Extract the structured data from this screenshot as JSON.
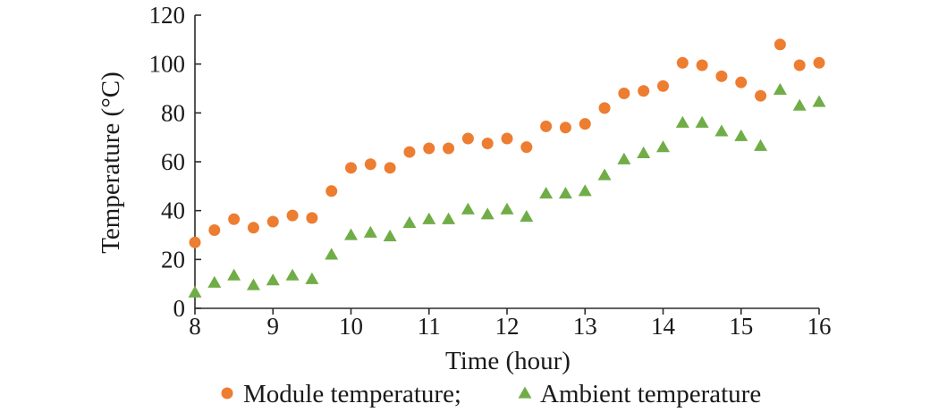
{
  "chart_data": {
    "type": "scatter",
    "title": "",
    "xlabel": "Time (hour)",
    "ylabel": "Temperature (°C)",
    "xlim": [
      8,
      16
    ],
    "ylim": [
      0,
      120
    ],
    "xticks": [
      8,
      9,
      10,
      11,
      12,
      13,
      14,
      15,
      16
    ],
    "yticks": [
      0,
      20,
      40,
      60,
      80,
      100,
      120
    ],
    "grid": false,
    "legend_position": "bottom",
    "series": [
      {
        "name": "Module temperature;",
        "marker": "circle",
        "color": "#ED7D31",
        "x": [
          8,
          8.25,
          8.5,
          8.75,
          9,
          9.25,
          9.5,
          9.75,
          10,
          10.25,
          10.5,
          10.75,
          11,
          11.25,
          11.5,
          11.75,
          12,
          12.25,
          12.5,
          12.75,
          13,
          13.25,
          13.5,
          13.75,
          14,
          14.25,
          14.5,
          14.75,
          15,
          15.25,
          15.5,
          15.75,
          16
        ],
        "y": [
          27,
          32,
          36.5,
          33,
          35.5,
          38,
          37,
          48,
          57.5,
          59,
          57.5,
          64,
          65.5,
          65.5,
          69.5,
          67.5,
          69.5,
          66,
          74.5,
          74,
          75.5,
          82,
          88,
          89,
          91,
          100.5,
          99.5,
          95,
          92.5,
          87,
          108,
          99.5,
          100.5
        ]
      },
      {
        "name": "Ambient temperature",
        "marker": "triangle",
        "color": "#70AD47",
        "x": [
          8,
          8.25,
          8.5,
          8.75,
          9,
          9.25,
          9.5,
          9.75,
          10,
          10.25,
          10.5,
          10.75,
          11,
          11.25,
          11.5,
          11.75,
          12,
          12.25,
          12.5,
          12.75,
          13,
          13.25,
          13.5,
          13.75,
          14,
          14.25,
          14.5,
          14.75,
          15,
          15.25,
          15.5,
          15.75,
          16
        ],
        "y": [
          6.5,
          10.5,
          13.5,
          9.5,
          11.5,
          13.5,
          12,
          22,
          30,
          31,
          29.5,
          35,
          36.5,
          36.5,
          40.5,
          38.5,
          40.5,
          37.5,
          47,
          47,
          48,
          54.5,
          61,
          63.5,
          66,
          76,
          76,
          72.5,
          70.5,
          66.5,
          89.5,
          83,
          84.5
        ]
      }
    ]
  }
}
